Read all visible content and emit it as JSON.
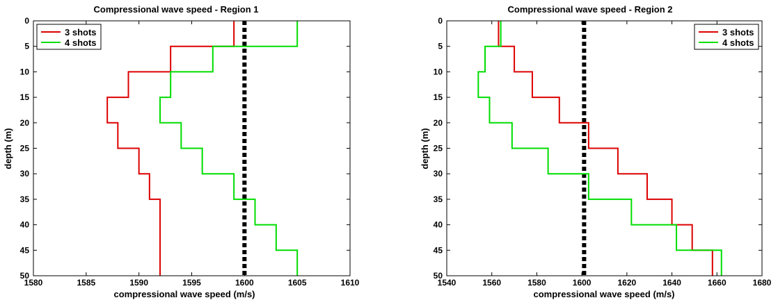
{
  "chart_data": [
    {
      "type": "line",
      "title": "Compressional wave speed - Region 1",
      "xlabel": "compressional wave speed (m/s)",
      "ylabel": "depth (m)",
      "xlim": [
        1580,
        1610
      ],
      "ylim": [
        0,
        50
      ],
      "y_reversed": true,
      "xticks": [
        1580,
        1585,
        1590,
        1595,
        1600,
        1605,
        1610
      ],
      "yticks": [
        0,
        5,
        10,
        15,
        20,
        25,
        30,
        35,
        40,
        45,
        50
      ],
      "grid": false,
      "legend_position": "top-left",
      "depth_breaks": [
        0,
        5,
        10,
        15,
        20,
        25,
        30,
        35,
        40,
        45,
        50
      ],
      "series": [
        {
          "name": "3 shots",
          "color": "#dd0000",
          "speeds": [
            1599,
            1593,
            1589,
            1587,
            1588,
            1590,
            1591,
            1592,
            1592,
            1592
          ]
        },
        {
          "name": "4 shots",
          "color": "#00dd00",
          "speeds": [
            1605,
            1597,
            1593,
            1592,
            1594,
            1596,
            1599,
            1601,
            1603,
            1605
          ]
        }
      ],
      "reference_line": {
        "x": 1600,
        "color": "#000000"
      }
    },
    {
      "type": "line",
      "title": "Compressional wave speed - Region 2",
      "xlabel": "compressional wave speed (m/s)",
      "ylabel": "depth (m)",
      "xlim": [
        1540,
        1680
      ],
      "ylim": [
        0,
        50
      ],
      "y_reversed": true,
      "xticks": [
        1540,
        1560,
        1580,
        1600,
        1620,
        1640,
        1660,
        1680
      ],
      "yticks": [
        0,
        5,
        10,
        15,
        20,
        25,
        30,
        35,
        40,
        45,
        50
      ],
      "grid": false,
      "legend_position": "top-right",
      "depth_breaks": [
        0,
        5,
        10,
        15,
        20,
        25,
        30,
        35,
        40,
        45,
        50
      ],
      "series": [
        {
          "name": "3 shots",
          "color": "#dd0000",
          "speeds": [
            1563,
            1570,
            1578,
            1590,
            1603,
            1616,
            1629,
            1640,
            1649,
            1658
          ]
        },
        {
          "name": "4 shots",
          "color": "#00dd00",
          "speeds": [
            1564,
            1557,
            1554,
            1559,
            1569,
            1585,
            1603,
            1622,
            1642,
            1662
          ]
        }
      ],
      "reference_line": {
        "x": 1601,
        "color": "#000000"
      }
    }
  ]
}
